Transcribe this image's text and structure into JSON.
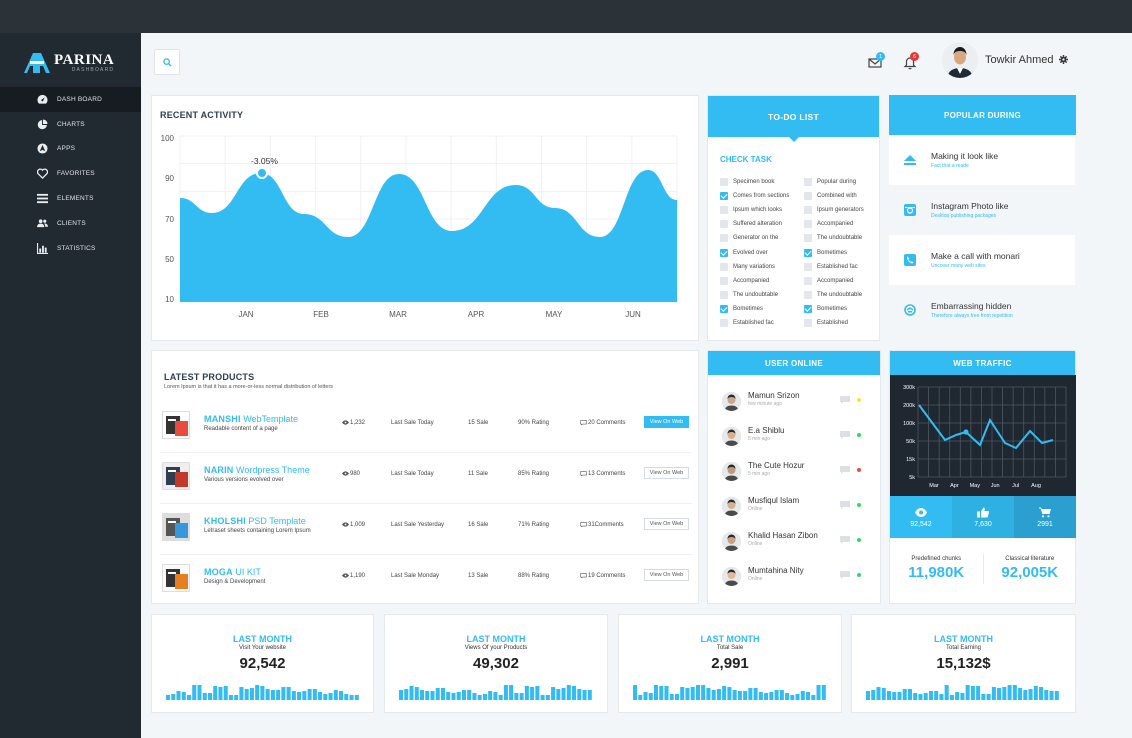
{
  "brand": {
    "name": "PARINA",
    "sub": "DASHBOARD"
  },
  "sidebar": {
    "items": [
      {
        "label": "DASH BOARD",
        "icon": "dashboard-icon",
        "active": true
      },
      {
        "label": "CHARTS",
        "icon": "pie-chart-icon"
      },
      {
        "label": "APPS",
        "icon": "apps-icon"
      },
      {
        "label": "FAVORITES",
        "icon": "heart-icon"
      },
      {
        "label": "ELEMENTS",
        "icon": "list-icon"
      },
      {
        "label": "CLIENTS",
        "icon": "users-icon"
      },
      {
        "label": "STATISTICS",
        "icon": "bar-chart-icon"
      }
    ]
  },
  "header": {
    "mail_badge": "1",
    "bell_badge": "6",
    "user_name": "Towkir Ahmed"
  },
  "recent_activity": {
    "title": "RECENT ACTIVITY",
    "callout": "-3.05%",
    "yticks": [
      "100",
      "90",
      "70",
      "50",
      "10"
    ],
    "xticks": [
      "JAN",
      "FEB",
      "MAR",
      "APR",
      "MAY",
      "JUN"
    ]
  },
  "chart_data": {
    "type": "area",
    "title": "RECENT ACTIVITY",
    "categories": [
      "JAN",
      "FEB",
      "MAR",
      "APR",
      "MAY",
      "JUN"
    ],
    "y_tick_labels": [
      "100",
      "90",
      "70",
      "50",
      "10"
    ],
    "annotation": "-3.05%",
    "grid": true
  },
  "todo": {
    "title": "TO-DO LIST",
    "section": "CHECK TASK",
    "left": [
      {
        "label": "Specimen book",
        "checked": false
      },
      {
        "label": "Comes from sections",
        "checked": true
      },
      {
        "label": "Ipsum which looks",
        "checked": false
      },
      {
        "label": "Suffered alteration",
        "checked": false
      },
      {
        "label": "Generator on the",
        "checked": false
      },
      {
        "label": "Evolved over",
        "checked": true
      },
      {
        "label": "Many variations",
        "checked": false
      },
      {
        "label": "Accompanied",
        "checked": false
      },
      {
        "label": "The undoubtable",
        "checked": false
      },
      {
        "label": "Bometimes",
        "checked": true
      },
      {
        "label": "Established fac",
        "checked": false
      }
    ],
    "right": [
      {
        "label": "Popular during",
        "checked": false
      },
      {
        "label": "Combined with",
        "checked": false
      },
      {
        "label": "Ipsum generators",
        "checked": false
      },
      {
        "label": "Accompanied",
        "checked": false
      },
      {
        "label": "The undoubtable",
        "checked": false
      },
      {
        "label": "Bometimes",
        "checked": true
      },
      {
        "label": "Established fac",
        "checked": false
      },
      {
        "label": "Accompanied",
        "checked": false
      },
      {
        "label": "The undoubtable",
        "checked": false
      },
      {
        "label": "Bometimes",
        "checked": true
      },
      {
        "label": "Established",
        "checked": false
      }
    ]
  },
  "popular": {
    "title": "POPULAR DURING",
    "items": [
      {
        "title": "Making it look like",
        "sub": "Fact that a reade",
        "icon": "eject-icon"
      },
      {
        "title": "Instagram Photo like",
        "sub": "Desktop publishing packages",
        "icon": "instagram-icon"
      },
      {
        "title": "Make a call with monari",
        "sub": "Uncover many web sites",
        "icon": "phone-icon"
      },
      {
        "title": "Embarrassing hidden",
        "sub": "Therefore always free from repetition",
        "icon": "refresh-icon"
      }
    ]
  },
  "products": {
    "title": "LATEST PRODUCTS",
    "subtitle": "Lorem Ipsum is that it has a more-or-less normal distribution of letters",
    "rows": [
      {
        "name_bold": "MANSHI",
        "name_rest": " WebTemplate",
        "desc": "Readable content of a page",
        "views": "1,232",
        "last_sale": "Last Sale Today",
        "sales": "15 Sale",
        "rating": "90%  Rating",
        "comments": "20 Comments",
        "button": "View On Web",
        "primary": true
      },
      {
        "name_bold": "NARIN",
        "name_rest": " Wordpress Theme",
        "desc": "Various versions evolved over",
        "views": "980",
        "last_sale": "Last Sale Today",
        "sales": "11 Sale",
        "rating": "85%  Rating",
        "comments": "13 Comments",
        "button": "View On Web",
        "primary": false
      },
      {
        "name_bold": "KHOLSHI",
        "name_rest": "  PSD Template",
        "desc": "Letraset sheets containing Lorem Ipsum",
        "views": "1,009",
        "last_sale": "Last Sale Yesterday",
        "sales": "16 Sale",
        "rating": "71%  Rating",
        "comments": "31Comments",
        "button": "View On Web",
        "primary": false
      },
      {
        "name_bold": "MOGA",
        "name_rest": " UI KIT",
        "desc": "Design & Development",
        "views": "1,190",
        "last_sale": "Last Sale Monday",
        "sales": "13 Sale",
        "rating": "88%  Rating",
        "comments": "19 Comments",
        "button": "View On Web",
        "primary": false
      }
    ]
  },
  "user_online": {
    "title": "USER ONLINE",
    "users": [
      {
        "name": "Mamun Srizon",
        "sub": "few minute ago",
        "status_color": "#f5e23a"
      },
      {
        "name": "E.a Shiblu",
        "sub": "5 min ago",
        "status_color": "#3ad36b"
      },
      {
        "name": "The Cute Hozur",
        "sub": "5 min ago",
        "status_color": "#ef4a4a"
      },
      {
        "name": "Musfiqul Islam",
        "sub": "Online",
        "status_color": "#3ad36b"
      },
      {
        "name": "Khalid Hasan Zibon",
        "sub": "Online",
        "status_color": "#3ad36b"
      },
      {
        "name": "Mumtahina Nity",
        "sub": "Online",
        "status_color": "#3ad36b"
      }
    ]
  },
  "web_traffic": {
    "title": "WEB TRAFFIC",
    "y_ticks": [
      "300k",
      "200k",
      "100k",
      "50k",
      "15k",
      "5k"
    ],
    "x_ticks": [
      "Mar",
      "Apr",
      "May",
      "Jun",
      "Jul",
      "Aug"
    ],
    "stats": [
      {
        "icon": "eye-icon",
        "value": "92,542"
      },
      {
        "icon": "thumbs-up-icon",
        "value": "7,630"
      },
      {
        "icon": "cart-icon",
        "value": "2991"
      }
    ],
    "footer": [
      {
        "label": "Predefined chunks",
        "value": "11,980K"
      },
      {
        "label": "Classical literature",
        "value": "92,005K"
      }
    ]
  },
  "stat_cards": [
    {
      "title": "LAST MONTH",
      "sub": "Visit Your website",
      "value": "92,542"
    },
    {
      "title": "LAST MONTH",
      "sub": "Views Of your Products",
      "value": "49,302"
    },
    {
      "title": "LAST MONTH",
      "sub": "Total Sale",
      "value": "2,991"
    },
    {
      "title": "LAST MONTH",
      "sub": "Total Earning",
      "value": "15,132$"
    }
  ],
  "colors": {
    "accent": "#33bcf1",
    "sidebar": "#222a31",
    "dark_panel": "#1f2730"
  }
}
